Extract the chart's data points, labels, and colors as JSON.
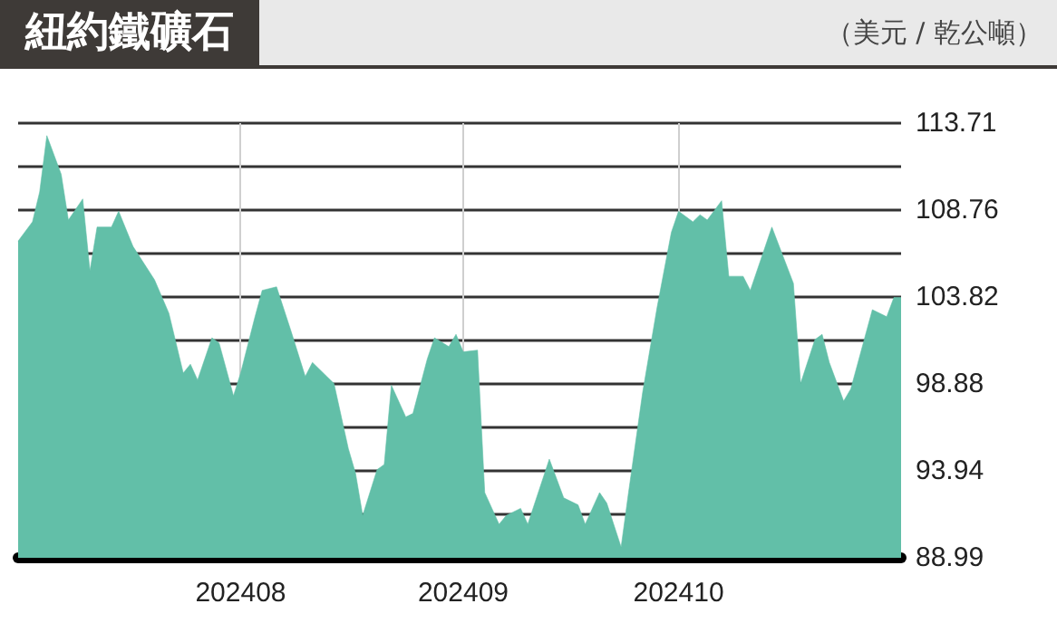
{
  "chart_data": {
    "type": "area",
    "title": "紐約鐵礦石",
    "subtitle": "（美元 / 乾公噸）",
    "x": [
      "2024-07-01",
      "2024-07-03",
      "2024-07-04",
      "2024-07-05",
      "2024-07-07",
      "2024-07-08",
      "2024-07-10",
      "2024-07-11",
      "2024-07-12",
      "2024-07-14",
      "2024-07-15",
      "2024-07-17",
      "2024-07-20",
      "2024-07-22",
      "2024-07-24",
      "2024-07-25",
      "2024-07-26",
      "2024-07-28",
      "2024-07-29",
      "2024-07-31",
      "2024-08-01",
      "2024-08-03",
      "2024-08-04",
      "2024-08-06",
      "2024-08-08",
      "2024-08-10",
      "2024-08-11",
      "2024-08-13",
      "2024-08-14",
      "2024-08-16",
      "2024-08-17",
      "2024-08-18",
      "2024-08-20",
      "2024-08-21",
      "2024-08-22",
      "2024-08-24",
      "2024-08-25",
      "2024-08-27",
      "2024-08-28",
      "2024-08-30",
      "2024-08-31",
      "2024-09-01",
      "2024-09-03",
      "2024-09-04",
      "2024-09-06",
      "2024-09-07",
      "2024-09-09",
      "2024-09-10",
      "2024-09-13",
      "2024-09-15",
      "2024-09-17",
      "2024-09-18",
      "2024-09-20",
      "2024-09-21",
      "2024-09-23",
      "2024-09-24",
      "2024-09-26",
      "2024-09-28",
      "2024-09-30",
      "2024-10-01",
      "2024-10-03",
      "2024-10-04",
      "2024-10-05",
      "2024-10-07",
      "2024-10-08",
      "2024-10-10",
      "2024-10-11",
      "2024-10-14",
      "2024-10-17",
      "2024-10-18",
      "2024-10-20",
      "2024-10-21",
      "2024-10-22",
      "2024-10-24",
      "2024-10-25",
      "2024-10-28",
      "2024-10-30",
      "2024-10-31",
      "2024-11-01"
    ],
    "series": [
      {
        "color": "#62bfa8",
        "values": [
          107.0,
          108.1,
          109.8,
          113.0,
          110.8,
          108.2,
          109.4,
          105.3,
          107.8,
          107.8,
          108.7,
          106.7,
          104.8,
          102.9,
          99.5,
          100.0,
          99.1,
          101.5,
          101.2,
          98.2,
          99.5,
          102.7,
          104.2,
          104.4,
          101.9,
          99.3,
          100.1,
          99.3,
          98.9,
          95.2,
          93.8,
          91.4,
          94.0,
          94.3,
          98.8,
          97.0,
          97.2,
          100.3,
          101.5,
          101.0,
          101.7,
          100.7,
          100.8,
          92.7,
          90.9,
          91.4,
          91.8,
          90.9,
          94.6,
          92.4,
          92.0,
          90.9,
          92.7,
          92.1,
          89.6,
          92.6,
          98.4,
          103.2,
          107.5,
          108.7,
          108.1,
          108.5,
          108.2,
          109.3,
          105.0,
          105.0,
          104.2,
          107.8,
          104.6,
          98.9,
          101.4,
          101.7,
          100.1,
          97.9,
          98.6,
          103.1,
          102.7,
          103.8,
          103.8
        ]
      }
    ],
    "xlim": [
      "2024-07-01",
      "2024-11-01"
    ],
    "xticks": [
      {
        "value": "2024-08-01",
        "label": "202408"
      },
      {
        "value": "2024-09-01",
        "label": "202409"
      },
      {
        "value": "2024-10-01",
        "label": "202410"
      }
    ],
    "ylim": [
      88.99,
      113.71
    ],
    "yticks": [
      88.99,
      {
        "value": 91.465,
        "label": null
      },
      93.94,
      {
        "value": 96.41,
        "label": null
      },
      98.88,
      {
        "value": 101.35,
        "label": null
      },
      103.82,
      {
        "value": 106.29,
        "label": null
      },
      108.76,
      {
        "value": 111.235,
        "label": null
      },
      113.71
    ],
    "grid": true,
    "marker": "none"
  }
}
